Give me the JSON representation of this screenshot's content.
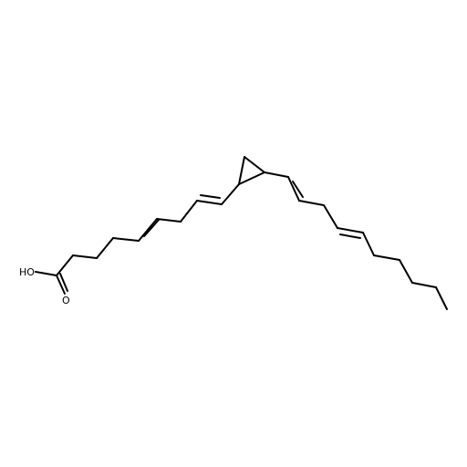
{
  "molecule": {
    "atom_labels": {
      "hydroxyl": "HO",
      "carbonyl_oxygen": "O"
    },
    "bond_color": "#000000",
    "background_color": "#ffffff"
  }
}
